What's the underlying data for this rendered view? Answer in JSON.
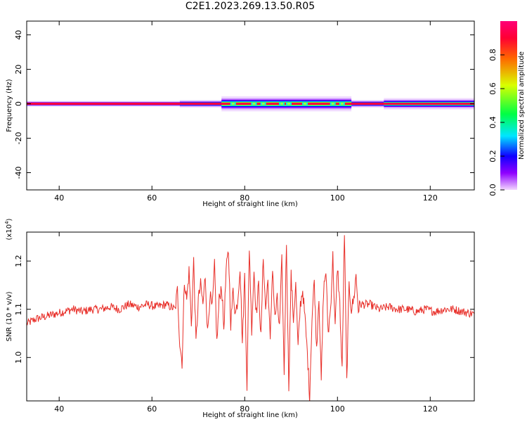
{
  "title": "C2E1.2023.269.13.50.R05",
  "chart_data": [
    {
      "type": "heatmap",
      "title": "C2E1.2023.269.13.50.R05",
      "xlabel": "Height of straight line (km)",
      "ylabel": "Frequency (Hz)",
      "xlim": [
        33,
        129.5
      ],
      "ylim": [
        -50,
        48
      ],
      "xticks": [
        40,
        60,
        80,
        100,
        120
      ],
      "yticks": [
        -40,
        -20,
        0,
        20,
        40
      ],
      "description_of_values": "power concentrated near 0 Hz along all heights, spreading to about +/-4 Hz between 75 and 103 km",
      "spread_segments": [
        {
          "x": [
            33,
            66
          ],
          "halfwidth_hz": 1.5
        },
        {
          "x": [
            66,
            75
          ],
          "halfwidth_hz": 2
        },
        {
          "x": [
            75,
            103
          ],
          "halfwidth_hz": 4
        },
        {
          "x": [
            103,
            110
          ],
          "halfwidth_hz": 2
        },
        {
          "x": [
            110,
            129.5
          ],
          "halfwidth_hz": 3
        }
      ],
      "peak_gaps_x": [
        77.5,
        82,
        84,
        88,
        89.5,
        93,
        99,
        101
      ],
      "colorbar": {
        "label": "Normalized spectral amplitude",
        "range": [
          0,
          1
        ],
        "ticks": [
          0.0,
          0.2,
          0.4,
          0.6,
          0.8
        ],
        "colors": [
          "#f3d6ff",
          "#6600ff",
          "#0000ff",
          "#00e6ff",
          "#00ff44",
          "#d9ff00",
          "#ff6600",
          "#ff0033",
          "#ff0077"
        ]
      }
    },
    {
      "type": "line",
      "xlabel": "Height of straight line (km)",
      "ylabel": "SNR (10 * v/v)",
      "y_multiplier_label": "(x10^4)",
      "xlim": [
        33,
        129.5
      ],
      "ylim": [
        0.91,
        1.26
      ],
      "xticks": [
        40,
        60,
        80,
        100,
        120
      ],
      "yticks": [
        1.0,
        1.1,
        1.2
      ],
      "series": [
        {
          "color": "#e8302a",
          "x": [
            33,
            35,
            37,
            39,
            41,
            43,
            45,
            47,
            49,
            51,
            53,
            55,
            57,
            59,
            61,
            63,
            65,
            65.5,
            66,
            66.5,
            67,
            67.5,
            68,
            68.5,
            69,
            69.5,
            70,
            70.5,
            71,
            71.5,
            72,
            72.5,
            73,
            73.5,
            74,
            74.5,
            75,
            75.5,
            76,
            76.5,
            77,
            77.5,
            78,
            78.5,
            79,
            79.5,
            80,
            80.5,
            81,
            81.5,
            82,
            82.5,
            83,
            83.5,
            84,
            84.5,
            85,
            85.5,
            86,
            86.5,
            87,
            87.5,
            88,
            88.5,
            89,
            89.5,
            90,
            90.5,
            91,
            91.5,
            92,
            92.5,
            93,
            93.5,
            94,
            94.5,
            95,
            95.5,
            96,
            96.5,
            97,
            97.5,
            98,
            98.5,
            99,
            99.5,
            100,
            100.5,
            101,
            101.5,
            102,
            102.5,
            103,
            103.5,
            104,
            104.5,
            105,
            107,
            109,
            111,
            113,
            115,
            117,
            119,
            121,
            123,
            125,
            127,
            129.5
          ],
          "values": [
            1.07,
            1.08,
            1.085,
            1.09,
            1.095,
            1.1,
            1.095,
            1.1,
            1.1,
            1.105,
            1.1,
            1.11,
            1.105,
            1.11,
            1.105,
            1.11,
            1.1,
            1.14,
            1.03,
            0.99,
            1.16,
            1.12,
            1.18,
            1.07,
            1.2,
            1.03,
            1.12,
            1.15,
            1.11,
            1.17,
            1.05,
            1.13,
            1.1,
            1.19,
            1.03,
            1.12,
            1.15,
            1.06,
            1.18,
            1.22,
            1.07,
            1.14,
            1.09,
            1.12,
            1.19,
            1.03,
            1.17,
            0.94,
            1.23,
            1.06,
            1.18,
            1.09,
            1.15,
            1.04,
            1.21,
            1.1,
            1.16,
            1.03,
            1.19,
            1.08,
            1.12,
            1.06,
            1.2,
            0.97,
            1.24,
            0.94,
            1.17,
            1.08,
            1.15,
            1.02,
            1.11,
            1.14,
            1.08,
            1.01,
            0.92,
            1.08,
            1.16,
            1.02,
            1.13,
            0.95,
            1.14,
            1.18,
            1.05,
            1.1,
            1.21,
            1.06,
            1.19,
            1.11,
            0.97,
            1.26,
            0.95,
            1.15,
            1.1,
            1.12,
            1.17,
            1.1,
            1.11,
            1.11,
            1.1,
            1.105,
            1.1,
            1.1,
            1.095,
            1.1,
            1.095,
            1.1,
            1.1,
            1.095,
            1.09
          ]
        }
      ]
    }
  ]
}
